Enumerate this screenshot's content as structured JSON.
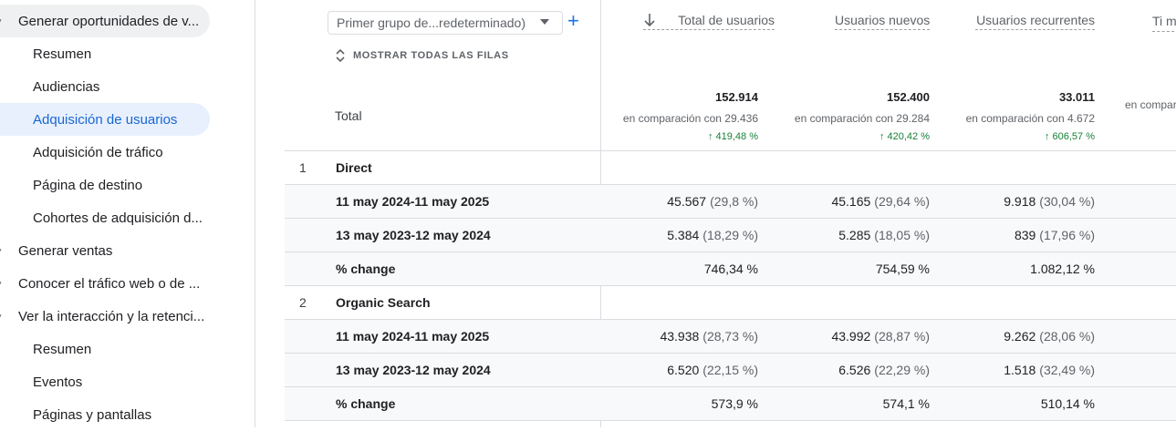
{
  "sidebar": {
    "items": [
      {
        "label": "Generar oportunidades de v...",
        "kind": "section"
      },
      {
        "label": "Resumen",
        "kind": "sub"
      },
      {
        "label": "Audiencias",
        "kind": "sub"
      },
      {
        "label": "Adquisición de usuarios",
        "kind": "sub-active"
      },
      {
        "label": "Adquisición de tráfico",
        "kind": "sub"
      },
      {
        "label": "Página de destino",
        "kind": "sub"
      },
      {
        "label": "Cohortes de adquisición d...",
        "kind": "sub"
      },
      {
        "label": "Generar ventas",
        "kind": "section"
      },
      {
        "label": "Conocer el tráfico web o de ...",
        "kind": "section"
      },
      {
        "label": "Ver la interacción y la retenci...",
        "kind": "section"
      },
      {
        "label": "Resumen",
        "kind": "sub"
      },
      {
        "label": "Eventos",
        "kind": "sub"
      },
      {
        "label": "Páginas y pantallas",
        "kind": "sub"
      }
    ]
  },
  "toolbar": {
    "dimension_selector": "Primer grupo de...redeterminado)",
    "add_label": "+",
    "show_all_rows": "MOSTRAR TODAS LAS FILAS"
  },
  "columns": [
    {
      "label": "Total de usuarios",
      "sorted": true
    },
    {
      "label": "Usuarios nuevos"
    },
    {
      "label": "Usuarios recurrentes"
    },
    {
      "label": "Ti med"
    }
  ],
  "totals": {
    "label": "Total",
    "values": [
      {
        "value": "152.914",
        "compare": "en comparación con 29.436",
        "change": "↑ 419,48 %"
      },
      {
        "value": "152.400",
        "compare": "en comparación con 29.284",
        "change": "↑ 420,42 %"
      },
      {
        "value": "33.011",
        "compare": "en comparación con 4.672",
        "change": "↑ 606,57 %"
      },
      {
        "value": "",
        "compare": "en compar",
        "change": ""
      }
    ]
  },
  "rows": [
    {
      "num": "1",
      "label": "Direct",
      "type": "group",
      "cells": []
    },
    {
      "num": "",
      "label": "11 may 2024-11 may 2025",
      "type": "data",
      "cells": [
        {
          "v": "45.567",
          "p": "(29,8 %)"
        },
        {
          "v": "45.165",
          "p": "(29,64 %)"
        },
        {
          "v": "9.918",
          "p": "(30,04 %)"
        }
      ]
    },
    {
      "num": "",
      "label": "13 may 2023-12 may 2024",
      "type": "data",
      "cells": [
        {
          "v": "5.384",
          "p": "(18,29 %)"
        },
        {
          "v": "5.285",
          "p": "(18,05 %)"
        },
        {
          "v": "839",
          "p": "(17,96 %)"
        }
      ]
    },
    {
      "num": "",
      "label": "% change",
      "type": "change",
      "cells": [
        {
          "v": "746,34 %",
          "p": ""
        },
        {
          "v": "754,59 %",
          "p": ""
        },
        {
          "v": "1.082,12 %",
          "p": ""
        }
      ]
    },
    {
      "num": "2",
      "label": "Organic Search",
      "type": "group",
      "cells": []
    },
    {
      "num": "",
      "label": "11 may 2024-11 may 2025",
      "type": "data",
      "cells": [
        {
          "v": "43.938",
          "p": "(28,73 %)"
        },
        {
          "v": "43.992",
          "p": "(28,87 %)"
        },
        {
          "v": "9.262",
          "p": "(28,06 %)"
        }
      ]
    },
    {
      "num": "",
      "label": "13 may 2023-12 may 2024",
      "type": "data",
      "cells": [
        {
          "v": "6.520",
          "p": "(22,15 %)"
        },
        {
          "v": "6.526",
          "p": "(22,29 %)"
        },
        {
          "v": "1.518",
          "p": "(32,49 %)"
        }
      ]
    },
    {
      "num": "",
      "label": "% change",
      "type": "change",
      "cells": [
        {
          "v": "573,9 %",
          "p": ""
        },
        {
          "v": "574,1 %",
          "p": ""
        },
        {
          "v": "510,14 %",
          "p": ""
        }
      ]
    }
  ]
}
